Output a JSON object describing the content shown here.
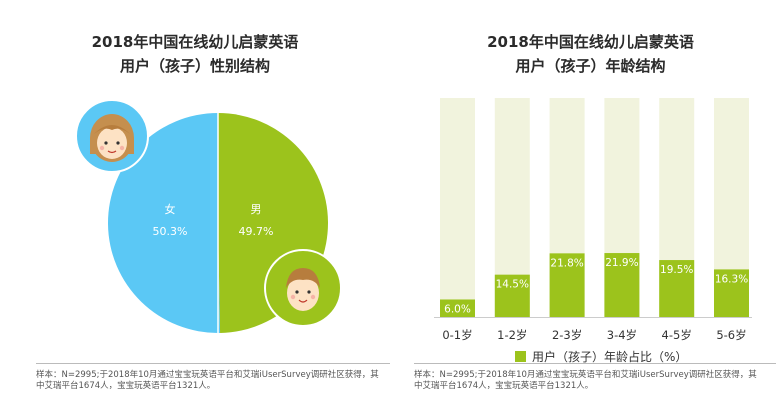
{
  "left": {
    "title_line1": "2018年中国在线幼儿启蒙英语",
    "title_line2": "用户（孩子）性别结构",
    "footnote_line1": "样本：N=2995;于2018年10月通过宝宝玩英语平台和艾瑞iUserSurvey调研社区获得，其",
    "footnote_line2": "中艾瑞平台1674人，宝宝玩英语平台1321人。"
  },
  "right": {
    "title_line1": "2018年中国在线幼儿启蒙英语",
    "title_line2": "用户（孩子）年龄结构",
    "footnote_line1": "样本：N=2995;于2018年10月通过宝宝玩英语平台和艾瑞iUserSurvey调研社区获得，其",
    "footnote_line2": "中艾瑞平台1674人，宝宝玩英语平台1321人。"
  },
  "chart_data": [
    {
      "type": "pie",
      "title": "2018年中国在线幼儿启蒙英语 用户（孩子）性别结构",
      "slices": [
        {
          "label": "女",
          "value": 50.3,
          "value_label": "50.3%",
          "color": "#5bc8f5"
        },
        {
          "label": "男",
          "value": 49.7,
          "value_label": "49.7%",
          "color": "#9cc31c"
        }
      ]
    },
    {
      "type": "bar",
      "title": "2018年中国在线幼儿启蒙英语 用户（孩子）年龄结构",
      "categories": [
        "0-1岁",
        "1-2岁",
        "2-3岁",
        "3-4岁",
        "4-5岁",
        "5-6岁"
      ],
      "series": [
        {
          "name": "用户（孩子）年龄占比（%）",
          "values": [
            6.0,
            14.5,
            21.8,
            21.9,
            19.5,
            16.3
          ],
          "color": "#9cc31c"
        }
      ],
      "value_labels": [
        "6.0%",
        "14.5%",
        "21.8%",
        "21.9%",
        "19.5%",
        "16.3%"
      ],
      "background_bar_color": "#f1f3dd",
      "ylim": [
        0,
        75
      ],
      "legend": "bottom"
    }
  ]
}
